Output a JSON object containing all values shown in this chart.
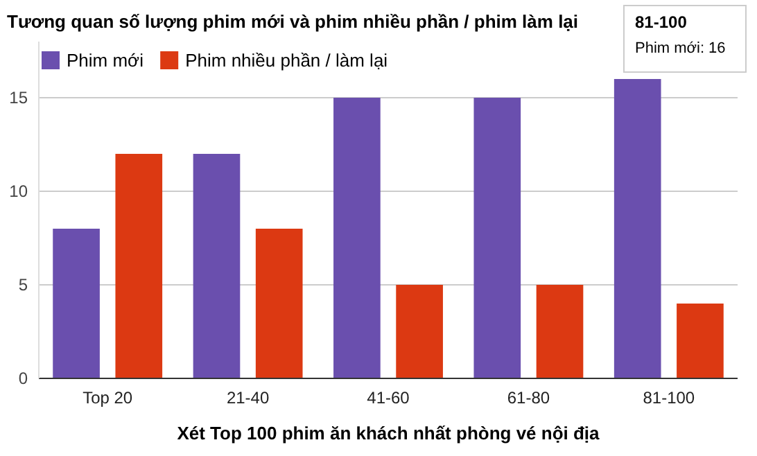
{
  "chart_data": {
    "type": "bar",
    "title": "Tương quan số lượng phim mới và phim nhiều phần / phim làm lại",
    "xlabel": "Xét Top 100 phim ăn khách nhất phòng vé nội địa",
    "categories": [
      "Top 20",
      "21-40",
      "41-60",
      "61-80",
      "81-100"
    ],
    "series": [
      {
        "name": "Phim mới",
        "color": "#6a4fae",
        "values": [
          8,
          12,
          15,
          15,
          16
        ]
      },
      {
        "name": "Phim nhiều phần / làm lại",
        "color": "#dc3912",
        "values": [
          12,
          8,
          5,
          5,
          4
        ]
      }
    ],
    "ylim": [
      0,
      18
    ],
    "yticks": [
      0,
      5,
      10,
      15
    ],
    "grid": "y",
    "legend": "top left",
    "annotations": [
      "81-100",
      "Phim mới: 16"
    ]
  }
}
